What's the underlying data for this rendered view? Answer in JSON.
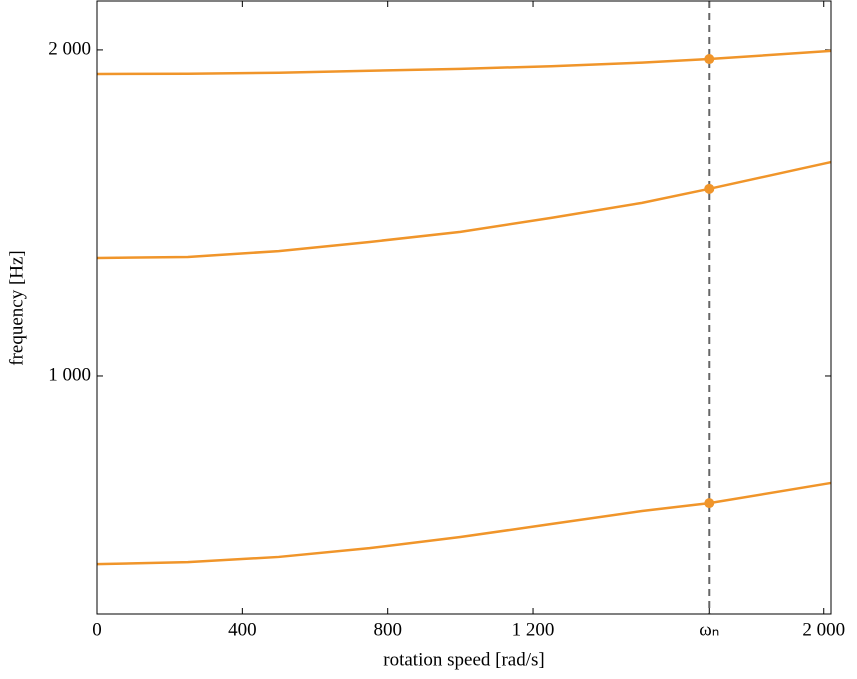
{
  "chart_data": {
    "type": "line",
    "x_label": "rotation speed [rad/s]",
    "y_label": "frequency [Hz]",
    "x": [
      0,
      250,
      500,
      750,
      1000,
      1250,
      1500,
      1685,
      2020
    ],
    "series": [
      {
        "color": "#f0952a",
        "values": [
          1926,
          1927,
          1930,
          1936,
          1942,
          1950,
          1961,
          1972,
          1997
        ]
      },
      {
        "color": "#f0952a",
        "values": [
          1362,
          1365,
          1383,
          1411,
          1442,
          1485,
          1531,
          1574,
          1656
        ]
      },
      {
        "color": "#f0952a",
        "values": [
          423,
          429,
          445,
          472,
          506,
          546,
          586,
          610,
          672
        ]
      }
    ],
    "markers": {
      "color": "#f0952a",
      "x": [
        1685,
        1685,
        1685
      ],
      "y": [
        1972,
        1574,
        610
      ]
    },
    "vline_x": 1685,
    "xlim": [
      0,
      2020
    ],
    "ylim": [
      270,
      2150
    ],
    "xticks": [
      0,
      400,
      800,
      {
        "value": 1200,
        "label": "1 200"
      },
      {
        "value": 1685,
        "label": "ωₙ"
      },
      {
        "value": 2000,
        "label": "2 000"
      }
    ],
    "yticks": [
      {
        "value": 1000,
        "label": "1 000"
      },
      {
        "value": 2000,
        "label": "2 000"
      }
    ]
  }
}
